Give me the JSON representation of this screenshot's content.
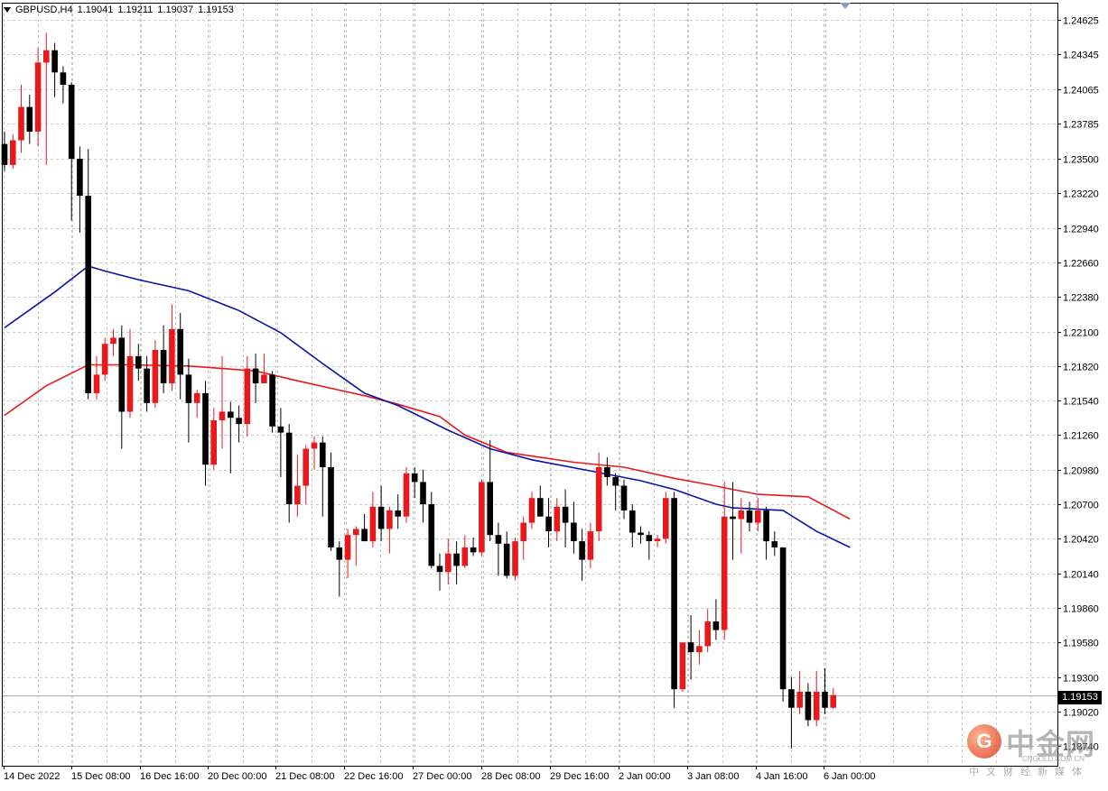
{
  "header": {
    "symbol": "GBPUSD,H4",
    "open": "1.19041",
    "high": "1.19211",
    "low": "1.19037",
    "close": "1.19153"
  },
  "current_price_label": "1.19153",
  "watermark": {
    "brand": "中金网",
    "domain": "CNGOLD.COM.CN",
    "slogan": "中文财经新媒体",
    "coin_glyph": "G"
  },
  "colors": {
    "bull": "#e8191c",
    "bear": "#000000",
    "ma_fast": "#0a12a8",
    "ma_slow": "#e8191c",
    "grid": "#c8c8c8"
  },
  "chart_data": {
    "type": "candlestick",
    "timeframe": "H4",
    "ylim": [
      1.1858,
      1.24765
    ],
    "y_ticks": [
      "1.24625",
      "1.24345",
      "1.24065",
      "1.23785",
      "1.23500",
      "1.23220",
      "1.22940",
      "1.22660",
      "1.22380",
      "1.22100",
      "1.21820",
      "1.21540",
      "1.21260",
      "1.20980",
      "1.20700",
      "1.20420",
      "1.20140",
      "1.19860",
      "1.19580",
      "1.19300",
      "1.19020",
      "1.18740"
    ],
    "x_labels": [
      "14 Dec 2022",
      "15 Dec 08:00",
      "16 Dec 16:00",
      "20 Dec 00:00",
      "21 Dec 08:00",
      "22 Dec 16:00",
      "27 Dec 00:00",
      "28 Dec 08:00",
      "29 Dec 16:00",
      "2 Jan 00:00",
      "3 Jan 08:00",
      "4 Jan 16:00",
      "6 Jan 00:00"
    ],
    "candles": [
      [
        1.2362,
        1.2372,
        1.234,
        1.2345
      ],
      [
        1.2345,
        1.237,
        1.2342,
        1.2365
      ],
      [
        1.2365,
        1.241,
        1.2355,
        1.2392
      ],
      [
        1.2392,
        1.2402,
        1.2362,
        1.2372
      ],
      [
        1.2372,
        1.244,
        1.236,
        1.2428
      ],
      [
        1.2428,
        1.2452,
        1.2345,
        1.2438
      ],
      [
        1.2438,
        1.2444,
        1.24,
        1.242
      ],
      [
        1.242,
        1.2425,
        1.2395,
        1.241
      ],
      [
        1.241,
        1.2412,
        1.23,
        1.235
      ],
      [
        1.235,
        1.236,
        1.229,
        1.232
      ],
      [
        1.232,
        1.2358,
        1.2155,
        1.216
      ],
      [
        1.216,
        1.219,
        1.2155,
        1.2175
      ],
      [
        1.2175,
        1.2205,
        1.217,
        1.22
      ],
      [
        1.22,
        1.2212,
        1.219,
        1.2205
      ],
      [
        1.2205,
        1.2215,
        1.2115,
        1.2145
      ],
      [
        1.2145,
        1.2212,
        1.214,
        1.219
      ],
      [
        1.219,
        1.22,
        1.217,
        1.218
      ],
      [
        1.218,
        1.219,
        1.2145,
        1.2152
      ],
      [
        1.2152,
        1.2203,
        1.2148,
        1.2195
      ],
      [
        1.2195,
        1.2215,
        1.216,
        1.2168
      ],
      [
        1.2168,
        1.2232,
        1.2162,
        1.2212
      ],
      [
        1.2212,
        1.2225,
        1.2155,
        1.2175
      ],
      [
        1.2175,
        1.2188,
        1.212,
        1.2152
      ],
      [
        1.2152,
        1.2163,
        1.214,
        1.216
      ],
      [
        1.216,
        1.217,
        1.2085,
        1.2102
      ],
      [
        1.2102,
        1.2148,
        1.2098,
        1.2138
      ],
      [
        1.2138,
        1.219,
        1.2115,
        1.2145
      ],
      [
        1.2145,
        1.2153,
        1.2095,
        1.214
      ],
      [
        1.214,
        1.215,
        1.212,
        1.2135
      ],
      [
        1.2135,
        1.219,
        1.2125,
        1.218
      ],
      [
        1.218,
        1.2192,
        1.2152,
        1.2168
      ],
      [
        1.2168,
        1.2192,
        1.2168,
        1.2175
      ],
      [
        1.2175,
        1.2178,
        1.2128,
        1.2133
      ],
      [
        1.2133,
        1.2148,
        1.2092,
        1.2128
      ],
      [
        1.2128,
        1.2135,
        1.2055,
        1.207
      ],
      [
        1.207,
        1.211,
        1.206,
        1.2085
      ],
      [
        1.2085,
        1.2118,
        1.207,
        1.2115
      ],
      [
        1.2115,
        1.2125,
        1.2098,
        1.212
      ],
      [
        1.212,
        1.2125,
        1.206,
        1.21
      ],
      [
        1.21,
        1.2112,
        1.2032,
        1.2035
      ],
      [
        1.2035,
        1.204,
        1.1995,
        1.2025
      ],
      [
        1.2025,
        1.205,
        1.201,
        1.2045
      ],
      [
        1.2045,
        1.2052,
        1.202,
        1.205
      ],
      [
        1.205,
        1.2062,
        1.2045,
        1.204
      ],
      [
        1.204,
        1.208,
        1.2035,
        1.2068
      ],
      [
        1.2068,
        1.2085,
        1.204,
        1.205
      ],
      [
        1.205,
        1.2068,
        1.203,
        1.2065
      ],
      [
        1.2065,
        1.2078,
        1.205,
        1.206
      ],
      [
        1.206,
        1.21,
        1.2055,
        1.2095
      ],
      [
        1.2095,
        1.21,
        1.2075,
        1.2088
      ],
      [
        1.2088,
        1.2098,
        1.2055,
        1.207
      ],
      [
        1.207,
        1.208,
        1.2018,
        1.202
      ],
      [
        1.202,
        1.203,
        1.2,
        1.2015
      ],
      [
        1.2015,
        1.2042,
        1.2005,
        1.203
      ],
      [
        1.203,
        1.204,
        1.2005,
        1.202
      ],
      [
        1.202,
        1.2045,
        1.2018,
        1.2035
      ],
      [
        1.2035,
        1.2043,
        1.2028,
        1.2031
      ],
      [
        1.2031,
        1.209,
        1.2028,
        1.2088
      ],
      [
        1.2088,
        1.2122,
        1.204,
        1.2045
      ],
      [
        1.2045,
        1.2055,
        1.2012,
        1.2038
      ],
      [
        1.2038,
        1.2048,
        1.201,
        1.2012
      ],
      [
        1.2012,
        1.2043,
        1.2008,
        1.204
      ],
      [
        1.204,
        1.206,
        1.2025,
        1.2055
      ],
      [
        1.2055,
        1.208,
        1.205,
        1.2075
      ],
      [
        1.2075,
        1.2085,
        1.206,
        1.206
      ],
      [
        1.206,
        1.2075,
        1.2035,
        1.2048
      ],
      [
        1.2048,
        1.2075,
        1.204,
        1.2068
      ],
      [
        1.2068,
        1.2082,
        1.2035,
        1.2055
      ],
      [
        1.2055,
        1.2072,
        1.203,
        1.204
      ],
      [
        1.204,
        1.205,
        1.2008,
        1.2025
      ],
      [
        1.2025,
        1.2055,
        1.2018,
        1.2048
      ],
      [
        1.2048,
        1.2112,
        1.204,
        1.21
      ],
      [
        1.21,
        1.2108,
        1.2085,
        1.2092
      ],
      [
        1.2092,
        1.2095,
        1.2065,
        1.2085
      ],
      [
        1.2085,
        1.209,
        1.2058,
        1.2065
      ],
      [
        1.2065,
        1.207,
        1.2035,
        1.2047
      ],
      [
        1.2047,
        1.2052,
        1.2038,
        1.2045
      ],
      [
        1.2045,
        1.2048,
        1.2025,
        1.204
      ],
      [
        1.204,
        1.2045,
        1.2035,
        1.2042
      ],
      [
        1.2042,
        1.208,
        1.2038,
        1.2075
      ],
      [
        1.2075,
        1.208,
        1.1905,
        1.192
      ],
      [
        1.192,
        1.1955,
        1.1918,
        1.1958
      ],
      [
        1.1958,
        1.198,
        1.1928,
        1.195
      ],
      [
        1.195,
        1.1968,
        1.194,
        1.1955
      ],
      [
        1.1955,
        1.1985,
        1.195,
        1.1975
      ],
      [
        1.1975,
        1.1993,
        1.196,
        1.1968
      ],
      [
        1.1968,
        1.2088,
        1.196,
        1.206
      ],
      [
        1.206,
        1.2088,
        1.2025,
        1.2058
      ],
      [
        1.2058,
        1.2075,
        1.203,
        1.2065
      ],
      [
        1.2065,
        1.2072,
        1.2048,
        1.2055
      ],
      [
        1.2055,
        1.2075,
        1.2048,
        1.2065
      ],
      [
        1.2065,
        1.2068,
        1.2025,
        1.204
      ],
      [
        1.204,
        1.2048,
        1.2028,
        1.2035
      ],
      [
        1.2035,
        1.2035,
        1.191,
        1.192
      ],
      [
        1.192,
        1.193,
        1.1872,
        1.1905
      ],
      [
        1.1905,
        1.1935,
        1.19,
        1.1918
      ],
      [
        1.1918,
        1.1925,
        1.189,
        1.1895
      ],
      [
        1.1895,
        1.1935,
        1.189,
        1.1918
      ],
      [
        1.1918,
        1.1937,
        1.19,
        1.1905
      ],
      [
        1.1905,
        1.1921,
        1.1904,
        1.19153
      ]
    ],
    "ma_fast": [
      [
        0,
        1.2213
      ],
      [
        6,
        1.2242
      ],
      [
        10,
        1.2263
      ],
      [
        12,
        1.2259
      ],
      [
        16,
        1.2252
      ],
      [
        22,
        1.2243
      ],
      [
        28,
        1.2227
      ],
      [
        33,
        1.2209
      ],
      [
        38,
        1.2184
      ],
      [
        43,
        1.216
      ],
      [
        47,
        1.215
      ],
      [
        53,
        1.213
      ],
      [
        58,
        1.2115
      ],
      [
        63,
        1.2106
      ],
      [
        70,
        1.2097
      ],
      [
        76,
        1.2089
      ],
      [
        80,
        1.2082
      ],
      [
        85,
        1.207
      ],
      [
        87,
        1.2067
      ],
      [
        93,
        1.2065
      ],
      [
        97,
        1.2048
      ],
      [
        101,
        1.2035
      ]
    ],
    "ma_slow": [
      [
        0,
        1.2142
      ],
      [
        5,
        1.2166
      ],
      [
        10,
        1.2183
      ],
      [
        15,
        1.2183
      ],
      [
        22,
        1.2182
      ],
      [
        30,
        1.2178
      ],
      [
        35,
        1.217
      ],
      [
        43,
        1.2158
      ],
      [
        47,
        1.2151
      ],
      [
        52,
        1.2141
      ],
      [
        55,
        1.2126
      ],
      [
        60,
        1.2112
      ],
      [
        68,
        1.2104
      ],
      [
        74,
        1.21
      ],
      [
        80,
        1.2091
      ],
      [
        84,
        1.2086
      ],
      [
        90,
        1.2078
      ],
      [
        96,
        1.2076
      ],
      [
        101,
        1.2058
      ]
    ]
  }
}
